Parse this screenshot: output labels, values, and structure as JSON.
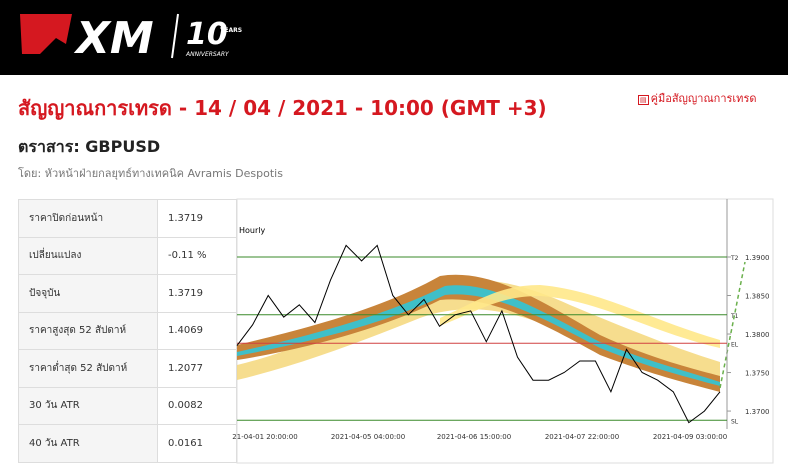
{
  "header": {
    "logo": "XM",
    "badge": "10",
    "badge_sub": "YEARS",
    "badge_caption": "ANNIVERSARY"
  },
  "title": "สัญญาณการเทรด - 14 / 04 / 2021 - 10:00 (GMT +3)",
  "guide_link": "คู่มือสัญญาณการเทรด",
  "instrument": "ตราสาร: GBPUSD",
  "author": "โดย: หัวหน้าฝ่ายกลยุทธ์ทางเทคนิค Avramis Despotis",
  "table": {
    "rows": [
      [
        "ราคาปิดก่อนหน้า",
        "1.3719"
      ],
      [
        "เปลี่ยนแปลง",
        "-0.11 %"
      ],
      [
        "ปัจจุบัน",
        "1.3719"
      ],
      [
        "ราคาสูงสุด 52 สัปดาห์",
        "1.4069"
      ],
      [
        "ราคาต่ำสุด 52 สัปดาห์",
        "1.2077"
      ],
      [
        "30 วัน ATR",
        "0.0082"
      ],
      [
        "40 วัน ATR",
        "0.0161"
      ]
    ]
  },
  "chart": {
    "type": "line",
    "timeframe": "Hourly",
    "color": "#000000",
    "values": [
      1.3785,
      1.3812,
      1.385,
      1.3822,
      1.3838,
      1.3815,
      1.387,
      1.3915,
      1.3895,
      1.3915,
      1.385,
      1.3825,
      1.3845,
      1.381,
      1.3825,
      1.383,
      1.379,
      1.383,
      1.377,
      1.374,
      1.374,
      1.375,
      1.3765,
      1.3765,
      1.3725,
      1.378,
      1.375,
      1.374,
      1.3725,
      1.3685,
      1.37,
      1.3725
    ],
    "ylim": [
      1.3678,
      1.3974
    ],
    "yticks": [
      {
        "value": 1.39,
        "label": "1.3900"
      },
      {
        "value": 1.385,
        "label": "1.3850"
      },
      {
        "value": 1.38,
        "label": "1.3800"
      },
      {
        "value": 1.375,
        "label": "1.3750"
      },
      {
        "value": 1.37,
        "label": "1.3700"
      }
    ],
    "x_labels": [
      "21-04-01 20:00:00",
      "2021-04-05 04:00:00",
      "2021-04-06 15:00:00",
      "2021-04-07 22:00:00",
      "2021-04-09 03:00:00"
    ],
    "levels": [
      {
        "name": "T2",
        "value": 1.39,
        "color": "#3a8a2a"
      },
      {
        "name": "T1",
        "value": 1.3825,
        "color": "#3a8a2a"
      },
      {
        "name": "EL",
        "value": 1.3788,
        "color": "#d04040"
      },
      {
        "name": "SL",
        "value": 1.3688,
        "color": "#3a8a2a"
      }
    ]
  }
}
